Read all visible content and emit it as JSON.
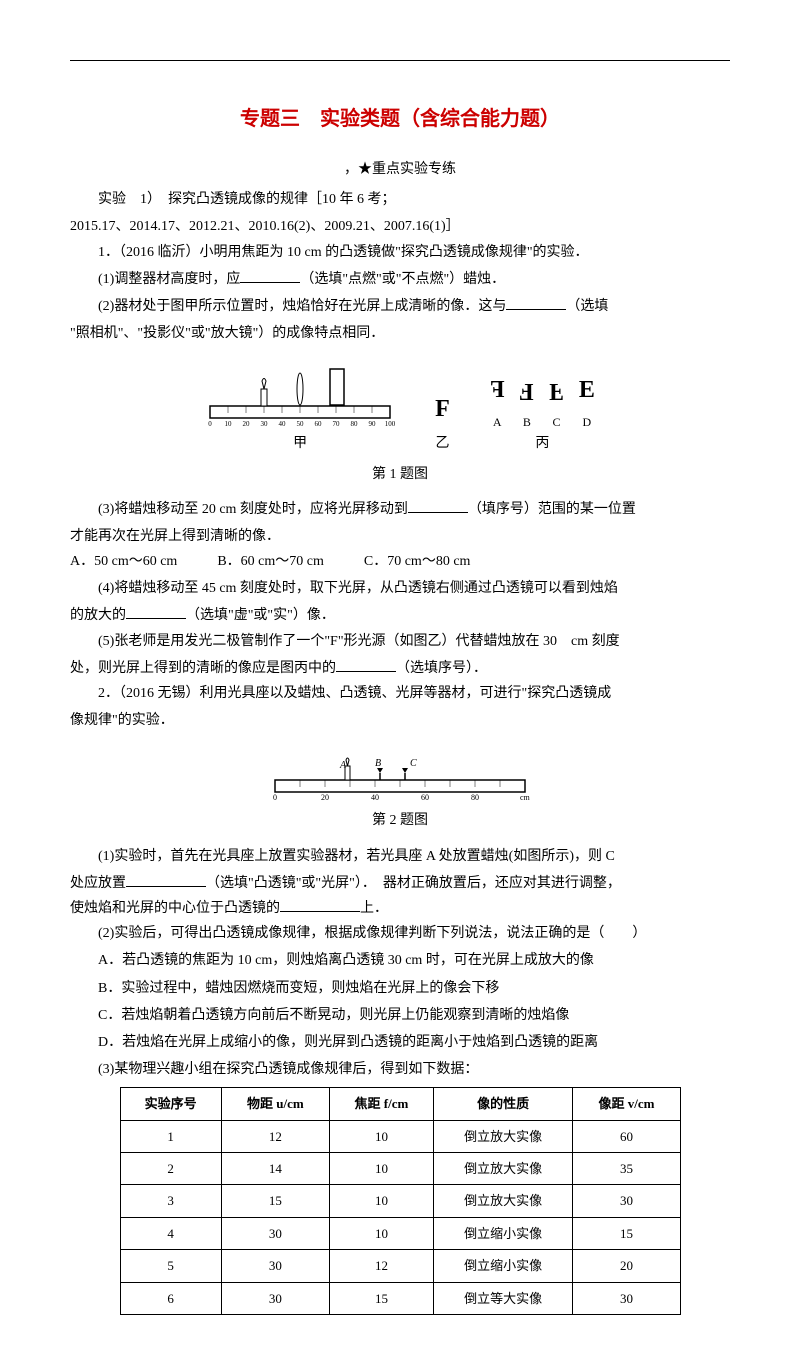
{
  "title": "专题三　实验类题（含综合能力题）",
  "subtitle": "，★重点实验专练",
  "exp1": {
    "header": "实验　1）　探究凸透镜成像的规律［10 年 6 考；",
    "header2": "2015.17、2014.17、2012.21、2010.16(2)、2009.21、2007.16(1)］",
    "q1_intro": "1．（2016 临沂）小明用焦距为 10 cm 的凸透镜做\"探究凸透镜成像规律\"的实验．",
    "q1_1": "(1)调整器材高度时，应",
    "q1_1b": "（选填\"点燃\"或\"不点燃\"）蜡烛．",
    "q1_2": "(2)器材处于图甲所示位置时，烛焰恰好在光屏上成清晰的像．这与",
    "q1_2b": "（选填",
    "q1_2c": "\"照相机\"、\"投影仪\"或\"放大镜\"）的成像特点相同．",
    "fig1_labels": {
      "jia": "甲",
      "yi": "乙",
      "bing": "丙"
    },
    "fig1_caption": "第 1 题图",
    "f_letters": {
      "a": "F",
      "b": "F",
      "c": "F",
      "d": "F"
    },
    "f_sublabels": {
      "a": "A",
      "b": "B",
      "c": "C",
      "d": "D"
    },
    "q1_3": "(3)将蜡烛移动至 20 cm 刻度处时，应将光屏移动到",
    "q1_3b": "（填序号）范围的某一位置",
    "q1_3c": "才能再次在光屏上得到清晰的像．",
    "opt_a": "A．50 cm～60 cm",
    "opt_b": "B．60 cm～70 cm",
    "opt_c": "C．70 cm～80 cm",
    "q1_4": "(4)将蜡烛移动至 45 cm 刻度处时，取下光屏，从凸透镜右侧通过凸透镜可以看到烛焰",
    "q1_4b": "的放大的",
    "q1_4c": "（选填\"虚\"或\"实\"）像．",
    "q1_5": "(5)张老师是用发光二极管制作了一个\"F\"形光源（如图乙）代替蜡烛放在 30　cm 刻度",
    "q1_5b": "处，则光屏上得到的清晰的像应是图丙中的",
    "q1_5c": "（选填序号）．"
  },
  "exp2": {
    "q2_intro": "2．（2016 无锡）利用光具座以及蜡烛、凸透镜、光屏等器材，可进行\"探究凸透镜成",
    "q2_intro_b": "像规律\"的实验．",
    "fig2_caption": "第 2 题图",
    "q2_1": "(1)实验时，首先在光具座上放置实验器材，若光具座 A 处放置蜡烛(如图所示)，则 C",
    "q2_1b": "处应放置",
    "q2_1c": "（选填\"凸透镜\"或\"光屏\"）．　器材正确放置后，还应对其进行调整，",
    "q2_1d": "使烛焰和光屏的中心位于凸透镜的",
    "q2_1e": "上．",
    "q2_2": "(2)实验后，可得出凸透镜成像规律，根据成像规律判断下列说法，说法正确的是（　　）",
    "q2_2a": "A．若凸透镜的焦距为 10 cm，则烛焰离凸透镜 30 cm 时，可在光屏上成放大的像",
    "q2_2b": "B．实验过程中，蜡烛因燃烧而变短，则烛焰在光屏上的像会下移",
    "q2_2c": "C．若烛焰朝着凸透镜方向前后不断晃动，则光屏上仍能观察到清晰的烛焰像",
    "q2_2d": "D．若烛焰在光屏上成缩小的像，则光屏到凸透镜的距离小于烛焰到凸透镜的距离",
    "q2_3": "(3)某物理兴趣小组在探究凸透镜成像规律后，得到如下数据："
  },
  "table": {
    "headers": [
      "实验序号",
      "物距 u/cm",
      "焦距 f/cm",
      "像的性质",
      "像距 v/cm"
    ],
    "rows": [
      [
        "1",
        "12",
        "10",
        "倒立放大实像",
        "60"
      ],
      [
        "2",
        "14",
        "10",
        "倒立放大实像",
        "35"
      ],
      [
        "3",
        "15",
        "10",
        "倒立放大实像",
        "30"
      ],
      [
        "4",
        "30",
        "10",
        "倒立缩小实像",
        "15"
      ],
      [
        "5",
        "30",
        "12",
        "倒立缩小实像",
        "20"
      ],
      [
        "6",
        "30",
        "15",
        "倒立等大实像",
        "30"
      ]
    ]
  }
}
